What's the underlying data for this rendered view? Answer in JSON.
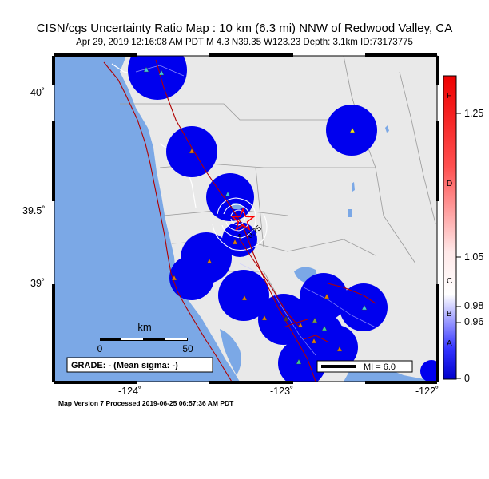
{
  "header": {
    "title": "CISN/cgs Uncertainty Ratio Map : 10 km (6.3 mi) NNW of Redwood Valley, CA",
    "subtitle": "Apr 29, 2019 12:16:08 AM PDT   M 4.3   N39.35 W123.23   Depth: 3.1km   ID:73173775"
  },
  "axes": {
    "y_ticks": [
      "40˚",
      "39.5˚",
      "39˚"
    ],
    "x_ticks": [
      "-124˚",
      "-123˚",
      "-122˚"
    ]
  },
  "map": {
    "contour_labels": [
      "1",
      "0.75"
    ],
    "scale_bar": {
      "unit": "km",
      "min_label": "0",
      "max_label": "50"
    },
    "grade_box": "GRADE: - (Mean sigma: -)",
    "mi_legend": "MI = 6.0"
  },
  "colorbar": {
    "letters": [
      "F",
      "D",
      "C",
      "B",
      "A"
    ],
    "ticks": [
      "1.25",
      "1.05",
      "0.98",
      "0.96",
      "0"
    ]
  },
  "footer": "Map Version 7 Processed 2019-06-25 06:57:36 AM PDT",
  "colors": {
    "ocean": "#7ba8e6",
    "land": "#e9e9e9",
    "uncertainty": "#0000ee",
    "fault": "#c00000",
    "epicenter": "#ff0000"
  }
}
